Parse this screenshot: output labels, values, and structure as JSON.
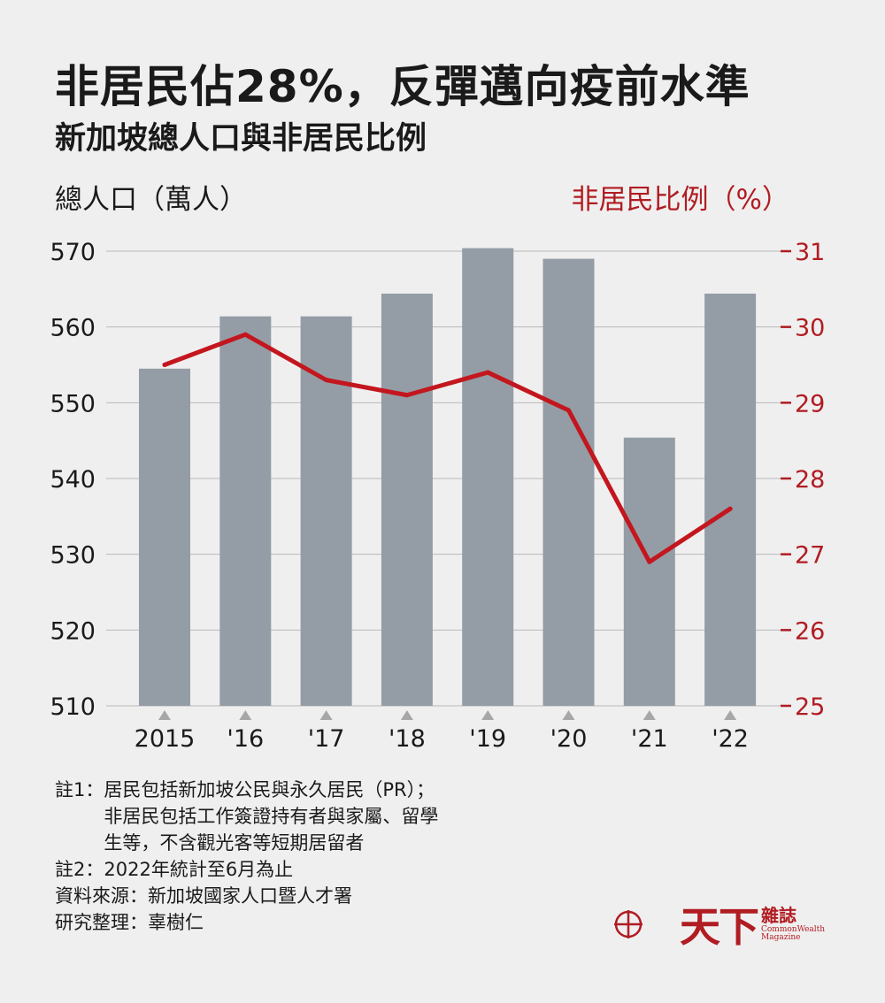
{
  "title": "非居民佔28%，反彈邁向疫前水準",
  "subtitle": "新加坡總人口與非居民比例",
  "colors": {
    "bar": "#949da5",
    "line": "#c3161e",
    "right_axis": "#b01c22",
    "grid": "#b9b9b9",
    "tick_marker": "#a7a7a7"
  },
  "chart_data": {
    "type": "bar",
    "categories": [
      "2015",
      "'16",
      "'17",
      "'18",
      "'19",
      "'20",
      "'21",
      "'22"
    ],
    "series": [
      {
        "type": "bar",
        "axis": "left",
        "values": [
          554.5,
          561.4,
          561.4,
          564.4,
          570.4,
          569.0,
          545.4,
          564.4
        ]
      },
      {
        "type": "line",
        "axis": "right",
        "values": [
          29.5,
          29.9,
          29.3,
          29.1,
          29.4,
          28.9,
          26.9,
          27.6
        ]
      }
    ],
    "ylabel": "總人口（萬人）",
    "ylabel_right": "非居民比例（%）",
    "ylim": [
      510,
      570
    ],
    "ylim_right": [
      25,
      31
    ],
    "yticks": [
      510,
      520,
      530,
      540,
      550,
      560,
      570
    ],
    "yticks_right": [
      25,
      26,
      27,
      28,
      29,
      30,
      31
    ],
    "grid": true
  },
  "notes": [
    {
      "label": "註1：",
      "lines": [
        "居民包括新加坡公民與永久居民（PR）；",
        "非居民包括工作簽證持有者與家屬、留學",
        "生等，不含觀光客等短期居留者"
      ]
    },
    {
      "label": "註2：",
      "lines": [
        "2022年統計至6月為止"
      ]
    },
    {
      "label": "資料來源：",
      "lines": [
        "新加坡國家人口暨人才署"
      ]
    },
    {
      "label": "研究整理：",
      "lines": [
        "辜樹仁"
      ]
    }
  ],
  "logo": {
    "icon": "crosshair-circle-icon",
    "name": "天下",
    "name_small": "雜誌",
    "name_en_1": "CommonWealth",
    "name_en_2": "Magazine"
  }
}
